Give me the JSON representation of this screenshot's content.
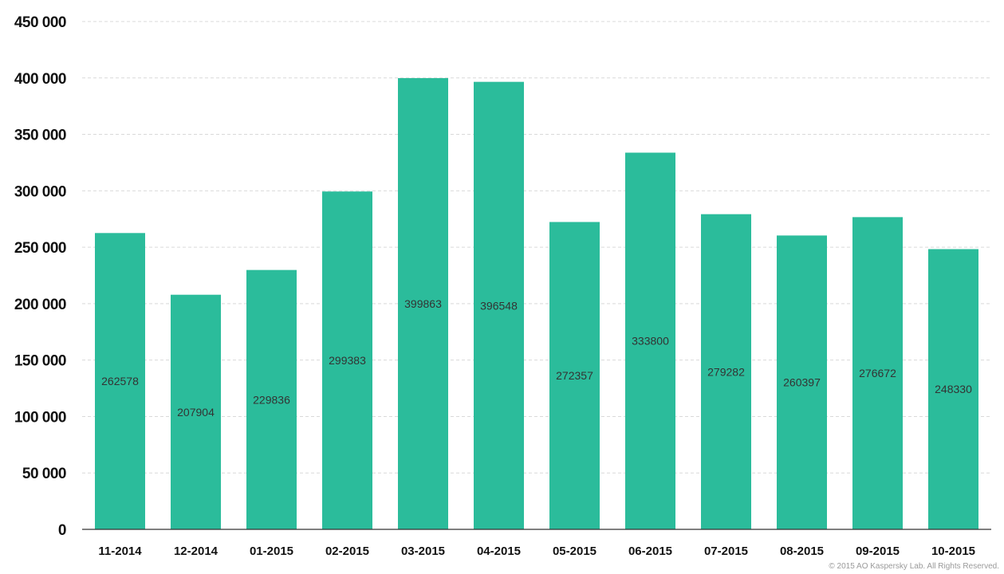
{
  "chart_data": {
    "type": "bar",
    "categories": [
      "11-2014",
      "12-2014",
      "01-2015",
      "02-2015",
      "03-2015",
      "04-2015",
      "05-2015",
      "06-2015",
      "07-2015",
      "08-2015",
      "09-2015",
      "10-2015"
    ],
    "values": [
      262578,
      207904,
      229836,
      299383,
      399863,
      396548,
      272357,
      333800,
      279282,
      260397,
      276672,
      248330
    ],
    "data_labels": [
      "262578",
      "207904",
      "229836",
      "299383",
      "399863",
      "396548",
      "272357",
      "333800",
      "279282",
      "260397",
      "276672",
      "248330"
    ],
    "ylim": [
      0,
      450000
    ],
    "yticks": [
      0,
      50000,
      100000,
      150000,
      200000,
      250000,
      300000,
      350000,
      400000,
      450000
    ],
    "ytick_labels": [
      "0",
      "50 000",
      "100 000",
      "150 000",
      "200 000",
      "250 000",
      "300 000",
      "350 000",
      "400 000",
      "450 000"
    ],
    "grid": true,
    "bar_color": "#2bbc9b",
    "title": "",
    "xlabel": "",
    "ylabel": ""
  },
  "footer": {
    "copyright": "© 2015 AO Kaspersky Lab. All Rights Reserved."
  }
}
